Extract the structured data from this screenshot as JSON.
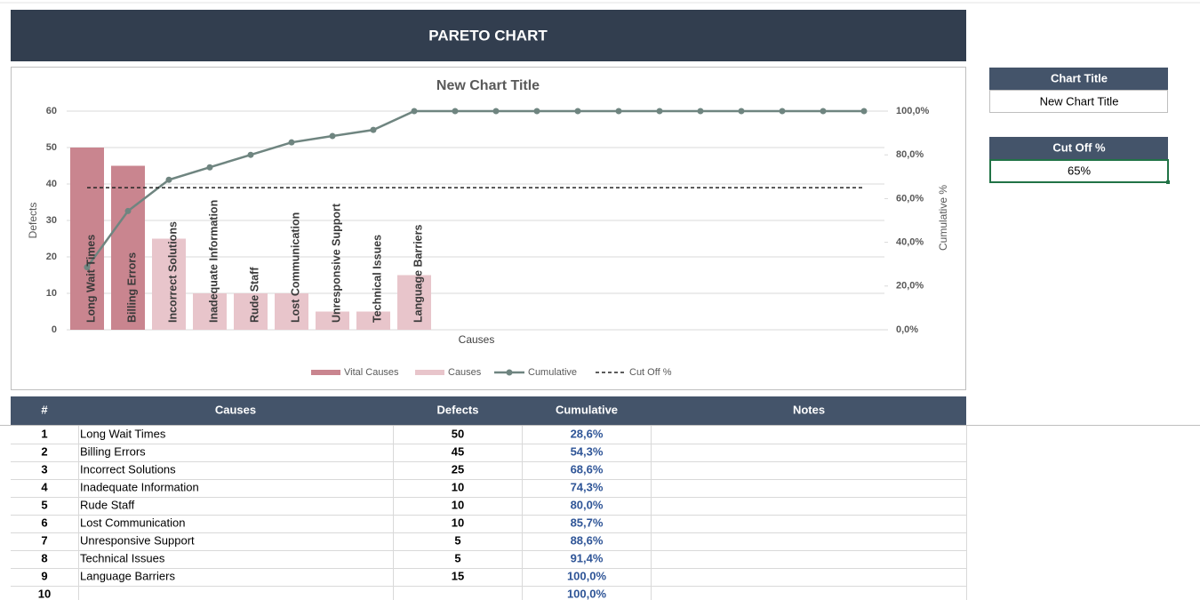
{
  "header": {
    "title": "PARETO CHART"
  },
  "chart_data": {
    "type": "pareto",
    "title": "New Chart Title",
    "x_label": "Causes",
    "y_label": "Defects",
    "y2_label": "Cumulative %",
    "categories": [
      "Long Wait Times",
      "Billing Errors",
      "Incorrect Solutions",
      "Inadequate Information",
      "Rude Staff",
      "Lost Communication",
      "Unresponsive Support",
      "Technical Issues",
      "Language Barriers",
      null,
      null,
      null,
      null,
      null,
      null,
      null,
      null,
      null,
      null,
      null
    ],
    "series": [
      {
        "name": "Vital Causes",
        "color": "#c9858f",
        "values": [
          50,
          45,
          null,
          null,
          null,
          null,
          null,
          null,
          null,
          null,
          null,
          null,
          null,
          null,
          null,
          null,
          null,
          null,
          null,
          null
        ]
      },
      {
        "name": "Causes",
        "color": "#e8c5cb",
        "values": [
          null,
          null,
          25,
          10,
          10,
          10,
          5,
          5,
          15,
          null,
          null,
          null,
          null,
          null,
          null,
          null,
          null,
          null,
          null,
          null
        ]
      },
      {
        "name": "Cumulative",
        "color": "#6f8580",
        "axis": "y2",
        "values": [
          28.6,
          54.3,
          68.6,
          74.3,
          80.0,
          85.7,
          88.6,
          91.4,
          100,
          100,
          100,
          100,
          100,
          100,
          100,
          100,
          100,
          100,
          100,
          100
        ]
      },
      {
        "name": "Cut Off %",
        "color": "#262626",
        "axis": "y2",
        "values": [
          65,
          65,
          65,
          65,
          65,
          65,
          65,
          65,
          65,
          65,
          65,
          65,
          65,
          65,
          65,
          65,
          65,
          65,
          65,
          65
        ]
      }
    ],
    "ylim": [
      0,
      60
    ],
    "yticks": [
      0,
      10,
      20,
      30,
      40,
      50,
      60
    ],
    "y2lim": [
      0,
      100
    ],
    "y2ticks": [
      {
        "value": 0,
        "label": "0,0%"
      },
      {
        "value": 20,
        "label": "20,0%"
      },
      {
        "value": 40,
        "label": "40,0%"
      },
      {
        "value": 60,
        "label": "60,0%"
      },
      {
        "value": 80,
        "label": "80,0%"
      },
      {
        "value": 100,
        "label": "100,0%"
      }
    ],
    "grid": true,
    "legend": "bottom"
  },
  "settings": {
    "chart_title_label": "Chart Title",
    "chart_title_value": "New Chart Title",
    "cutoff_label": "Cut Off %",
    "cutoff_value": "65%"
  },
  "table": {
    "columns": [
      "#",
      "Causes",
      "Defects",
      "Cumulative",
      "Notes"
    ],
    "rows": [
      [
        "1",
        "Long Wait Times",
        "50",
        "28,6%",
        null
      ],
      [
        "2",
        "Billing Errors",
        "45",
        "54,3%",
        null
      ],
      [
        "3",
        "Incorrect Solutions",
        "25",
        "68,6%",
        null
      ],
      [
        "4",
        "Inadequate Information",
        "10",
        "74,3%",
        null
      ],
      [
        "5",
        "Rude Staff",
        "10",
        "80,0%",
        null
      ],
      [
        "6",
        "Lost Communication",
        "10",
        "85,7%",
        null
      ],
      [
        "7",
        "Unresponsive Support",
        "5",
        "88,6%",
        null
      ],
      [
        "8",
        "Technical Issues",
        "5",
        "91,4%",
        null
      ],
      [
        "9",
        "Language Barriers",
        "15",
        "100,0%",
        null
      ],
      [
        "10",
        null,
        null,
        "100,0%",
        null
      ]
    ]
  }
}
